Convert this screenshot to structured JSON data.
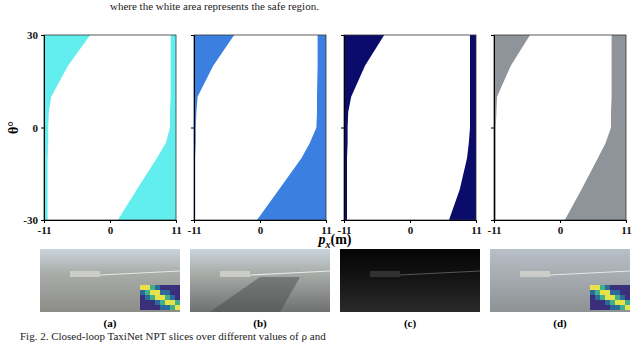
{
  "chart_data": [
    {
      "type": "area",
      "ylabel": "θ°",
      "color": "#62eeee",
      "xlim": [
        -11,
        11
      ],
      "xticks": [
        -11,
        0,
        11
      ],
      "ylim": [
        -30,
        30
      ],
      "yticks": [
        -30,
        0,
        30
      ],
      "y": [
        30,
        20,
        10,
        5,
        0,
        -5,
        -10,
        -20,
        -30
      ],
      "safe_min_x": [
        -3.3,
        -7,
        -9.8,
        -10.2,
        -10.3,
        -10.3,
        -10.4,
        -10.4,
        -10.4
      ],
      "safe_max_x": [
        10.1,
        10.1,
        10.1,
        10.0,
        10.0,
        9.3,
        7.8,
        4.5,
        1.3
      ]
    },
    {
      "type": "area",
      "color": "#3b7fe0",
      "tick_labels": "x",
      "xlim": [
        -11,
        11
      ],
      "xticks": [
        -11,
        0,
        11
      ],
      "ylim": [
        -30,
        30
      ],
      "yticks": [
        -30,
        0,
        30
      ],
      "y": [
        30,
        20,
        10,
        5,
        0,
        -5,
        -10,
        -20,
        -30
      ],
      "safe_min_x": [
        -4.3,
        -7.8,
        -10.4,
        -10.6,
        -10.7,
        -10.7,
        -10.8,
        -10.8,
        -10.8
      ],
      "safe_max_x": [
        9.6,
        9.6,
        9.5,
        9.5,
        9.4,
        8.3,
        6.9,
        3.2,
        -0.5
      ]
    },
    {
      "type": "area",
      "color": "#0b0b6b",
      "tick_labels": "x",
      "xlim": [
        -11,
        11
      ],
      "xticks": [
        -11,
        0,
        11
      ],
      "ylim": [
        -30,
        30
      ],
      "yticks": [
        -30,
        0,
        30
      ],
      "y": [
        30,
        20,
        10,
        5,
        0,
        -5,
        -10,
        -20,
        -30
      ],
      "safe_min_x": [
        -4.3,
        -7.5,
        -9.8,
        -10.3,
        -10.4,
        -10.4,
        -10.5,
        -10.5,
        -10.5
      ],
      "safe_max_x": [
        10.0,
        10.0,
        10.0,
        10.0,
        10.0,
        9.8,
        9.5,
        8.3,
        6.5
      ]
    },
    {
      "type": "area",
      "color": "#8e9499",
      "tick_labels": "x",
      "xlim": [
        -11,
        11
      ],
      "xticks": [
        -11,
        0,
        11
      ],
      "ylim": [
        -30,
        30
      ],
      "yticks": [
        -30,
        0,
        30
      ],
      "y": [
        30,
        20,
        10,
        5,
        0,
        -5,
        -10,
        -20,
        -30
      ],
      "safe_min_x": [
        -5.0,
        -8.2,
        -10.5,
        -10.6,
        -10.7,
        -10.7,
        -10.7,
        -10.7,
        -10.7
      ],
      "safe_max_x": [
        8.6,
        8.6,
        8.6,
        8.5,
        8.5,
        7.6,
        6.3,
        3.6,
        0.8
      ]
    }
  ],
  "figure": {
    "header": "where the white area represents the safe region.",
    "xlabel": {
      "base": "p",
      "subscript": "x",
      "unit": "(m)"
    },
    "subfigure_labels": [
      "(a)",
      "(b)",
      "(c)",
      "(d)"
    ],
    "caption": "Fig. 2.  Closed-loop TaxiNet NPT slices over different values of ρ and"
  }
}
